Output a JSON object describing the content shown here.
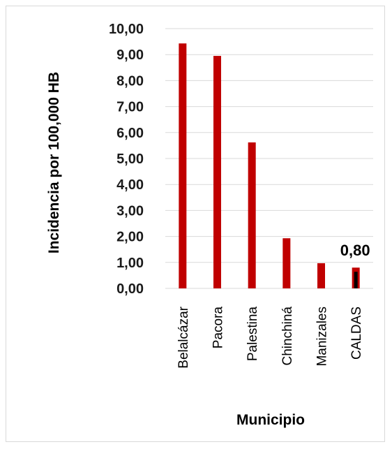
{
  "chart_data": {
    "type": "bar",
    "categories": [
      "Belalcázar",
      "Pacora",
      "Palestina",
      "Chinchiná",
      "Manizales",
      "CALDAS"
    ],
    "values": [
      9.43,
      8.95,
      5.62,
      1.93,
      0.97,
      0.8
    ],
    "xlabel": "Municipio",
    "ylabel": "Incidencia por 100,000 HB",
    "ylim": [
      0,
      10
    ],
    "yticks": [
      "0,00",
      "1,00",
      "2,00",
      "3,00",
      "4,00",
      "5,00",
      "6,00",
      "7,00",
      "8,00",
      "9,00",
      "10,00"
    ],
    "data_labels": [
      {
        "category": "CALDAS",
        "text": "0,80"
      }
    ],
    "bar_color": "#c00000",
    "highlight_color": "#000000",
    "grid": true,
    "legend": "none"
  }
}
